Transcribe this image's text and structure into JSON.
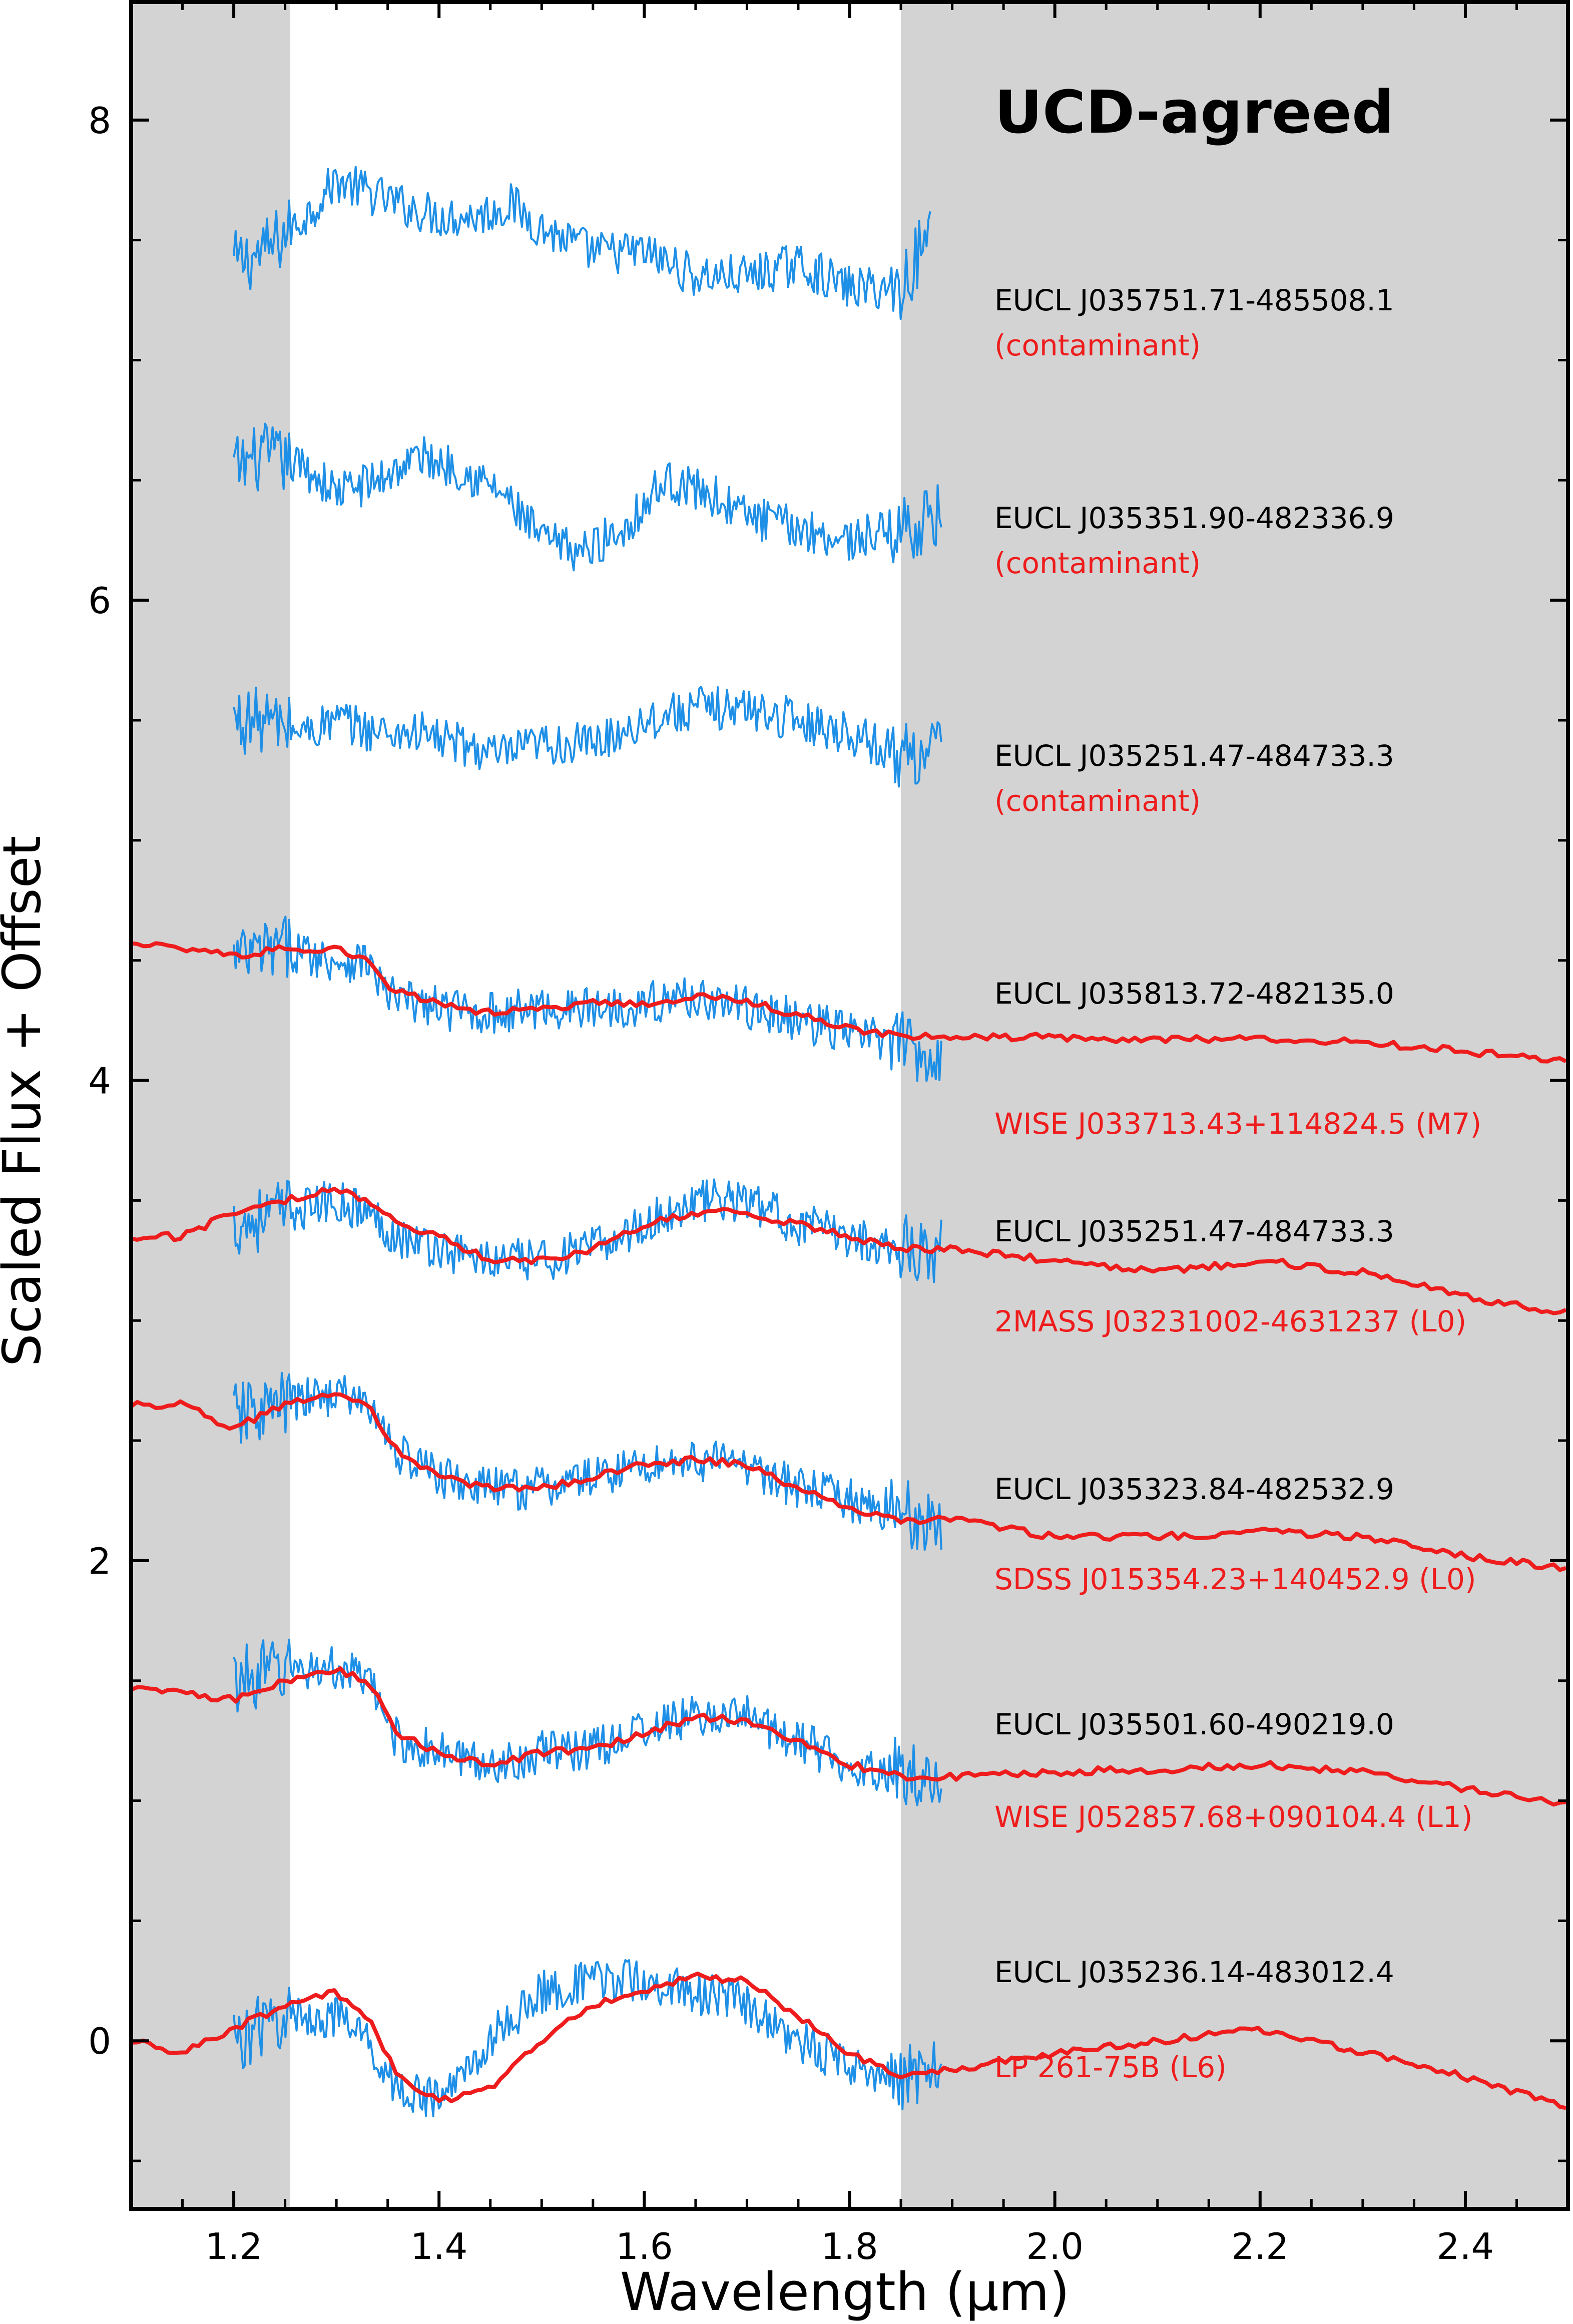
{
  "chart_data": {
    "type": "line",
    "title": "UCD-agreed",
    "xlabel": "Wavelength (μm)",
    "ylabel": "Scaled Flux + Offset",
    "xlim": [
      1.1,
      2.5
    ],
    "ylim": [
      -0.7,
      8.5
    ],
    "x_ticks": [
      1.2,
      1.4,
      1.6,
      1.8,
      2.0,
      2.2,
      2.4
    ],
    "x_tick_labels": [
      "1.2",
      "1.4",
      "1.6",
      "1.8",
      "2.0",
      "2.2",
      "2.4"
    ],
    "y_ticks": [
      0,
      2,
      4,
      6,
      8
    ],
    "y_tick_labels": [
      "0",
      "2",
      "4",
      "6",
      "8"
    ],
    "shaded_regions": [
      [
        1.1,
        1.255
      ],
      [
        1.85,
        2.5
      ]
    ],
    "colors": {
      "observed": "#1e8fe6",
      "observed_masked": "#000000",
      "template": "#ee1c1c",
      "shade": "#d3d3d3"
    },
    "grid": false,
    "spectra": [
      {
        "object": "EUCL J035751.71-485508.1",
        "match": "(contaminant)",
        "observed": [
          [
            1.2,
            7.4
          ],
          [
            1.23,
            7.45
          ],
          [
            1.27,
            7.6
          ],
          [
            1.3,
            7.75
          ],
          [
            1.33,
            7.7
          ],
          [
            1.36,
            7.65
          ],
          [
            1.4,
            7.6
          ],
          [
            1.44,
            7.6
          ],
          [
            1.47,
            7.65
          ],
          [
            1.5,
            7.55
          ],
          [
            1.55,
            7.45
          ],
          [
            1.6,
            7.45
          ],
          [
            1.65,
            7.35
          ],
          [
            1.7,
            7.35
          ],
          [
            1.75,
            7.4
          ],
          [
            1.8,
            7.3
          ],
          [
            1.85,
            7.3
          ],
          [
            1.88,
            7.55
          ]
        ]
      },
      {
        "object": "EUCL J035351.90-482336.9",
        "match": "(contaminant)",
        "observed": [
          [
            1.2,
            6.55
          ],
          [
            1.23,
            6.6
          ],
          [
            1.27,
            6.55
          ],
          [
            1.3,
            6.45
          ],
          [
            1.34,
            6.5
          ],
          [
            1.38,
            6.6
          ],
          [
            1.42,
            6.55
          ],
          [
            1.46,
            6.45
          ],
          [
            1.5,
            6.25
          ],
          [
            1.54,
            6.2
          ],
          [
            1.58,
            6.3
          ],
          [
            1.62,
            6.5
          ],
          [
            1.66,
            6.45
          ],
          [
            1.7,
            6.35
          ],
          [
            1.75,
            6.3
          ],
          [
            1.8,
            6.25
          ],
          [
            1.85,
            6.3
          ],
          [
            1.89,
            6.35
          ]
        ]
      },
      {
        "object": "EUCL J035251.47-484733.3",
        "match": "(contaminant)",
        "observed": [
          [
            1.2,
            5.5
          ],
          [
            1.23,
            5.5
          ],
          [
            1.27,
            5.45
          ],
          [
            1.3,
            5.5
          ],
          [
            1.34,
            5.45
          ],
          [
            1.38,
            5.45
          ],
          [
            1.42,
            5.4
          ],
          [
            1.46,
            5.35
          ],
          [
            1.5,
            5.4
          ],
          [
            1.55,
            5.4
          ],
          [
            1.6,
            5.5
          ],
          [
            1.65,
            5.55
          ],
          [
            1.7,
            5.55
          ],
          [
            1.75,
            5.5
          ],
          [
            1.8,
            5.45
          ],
          [
            1.85,
            5.35
          ],
          [
            1.89,
            5.4
          ]
        ]
      },
      {
        "object": "EUCL J035813.72-482135.0",
        "match": "WISE J033713.43+114824.5 (M7)",
        "observed": [
          [
            1.2,
            4.5
          ],
          [
            1.25,
            4.55
          ],
          [
            1.3,
            4.5
          ],
          [
            1.33,
            4.5
          ],
          [
            1.35,
            4.35
          ],
          [
            1.4,
            4.3
          ],
          [
            1.45,
            4.28
          ],
          [
            1.5,
            4.3
          ],
          [
            1.55,
            4.3
          ],
          [
            1.6,
            4.32
          ],
          [
            1.65,
            4.35
          ],
          [
            1.7,
            4.3
          ],
          [
            1.75,
            4.25
          ],
          [
            1.8,
            4.2
          ],
          [
            1.85,
            4.15
          ],
          [
            1.89,
            4.1
          ]
        ],
        "template": [
          [
            1.1,
            4.58
          ],
          [
            1.15,
            4.55
          ],
          [
            1.2,
            4.52
          ],
          [
            1.25,
            4.55
          ],
          [
            1.3,
            4.55
          ],
          [
            1.33,
            4.5
          ],
          [
            1.35,
            4.38
          ],
          [
            1.4,
            4.32
          ],
          [
            1.45,
            4.28
          ],
          [
            1.5,
            4.3
          ],
          [
            1.55,
            4.32
          ],
          [
            1.6,
            4.32
          ],
          [
            1.65,
            4.35
          ],
          [
            1.7,
            4.33
          ],
          [
            1.75,
            4.27
          ],
          [
            1.8,
            4.22
          ],
          [
            1.85,
            4.18
          ],
          [
            1.9,
            4.18
          ],
          [
            2.0,
            4.18
          ],
          [
            2.1,
            4.17
          ],
          [
            2.2,
            4.17
          ],
          [
            2.3,
            4.16
          ],
          [
            2.4,
            4.12
          ],
          [
            2.5,
            4.08
          ]
        ]
      },
      {
        "object": "EUCL J035251.47-484733.3",
        "match": "2MASS J03231002-4631237 (L0)",
        "observed": [
          [
            1.2,
            3.4
          ],
          [
            1.25,
            3.45
          ],
          [
            1.3,
            3.5
          ],
          [
            1.33,
            3.45
          ],
          [
            1.36,
            3.35
          ],
          [
            1.4,
            3.3
          ],
          [
            1.45,
            3.25
          ],
          [
            1.5,
            3.25
          ],
          [
            1.55,
            3.3
          ],
          [
            1.6,
            3.4
          ],
          [
            1.65,
            3.5
          ],
          [
            1.7,
            3.5
          ],
          [
            1.75,
            3.4
          ],
          [
            1.8,
            3.35
          ],
          [
            1.85,
            3.3
          ],
          [
            1.89,
            3.3
          ]
        ],
        "template": [
          [
            1.1,
            3.35
          ],
          [
            1.15,
            3.35
          ],
          [
            1.2,
            3.45
          ],
          [
            1.25,
            3.5
          ],
          [
            1.3,
            3.55
          ],
          [
            1.33,
            3.5
          ],
          [
            1.36,
            3.4
          ],
          [
            1.4,
            3.35
          ],
          [
            1.45,
            3.25
          ],
          [
            1.5,
            3.25
          ],
          [
            1.55,
            3.3
          ],
          [
            1.6,
            3.4
          ],
          [
            1.65,
            3.45
          ],
          [
            1.7,
            3.45
          ],
          [
            1.75,
            3.4
          ],
          [
            1.8,
            3.35
          ],
          [
            1.85,
            3.3
          ],
          [
            1.9,
            3.3
          ],
          [
            2.0,
            3.25
          ],
          [
            2.1,
            3.2
          ],
          [
            2.2,
            3.25
          ],
          [
            2.3,
            3.2
          ],
          [
            2.4,
            3.1
          ],
          [
            2.5,
            3.03
          ]
        ]
      },
      {
        "object": "EUCL J035323.84-482532.9",
        "match": "SDSS J015354.23+140452.9 (L0)",
        "observed": [
          [
            1.2,
            2.6
          ],
          [
            1.25,
            2.65
          ],
          [
            1.3,
            2.7
          ],
          [
            1.33,
            2.65
          ],
          [
            1.36,
            2.45
          ],
          [
            1.4,
            2.35
          ],
          [
            1.45,
            2.3
          ],
          [
            1.5,
            2.3
          ],
          [
            1.55,
            2.35
          ],
          [
            1.6,
            2.4
          ],
          [
            1.65,
            2.42
          ],
          [
            1.7,
            2.4
          ],
          [
            1.75,
            2.3
          ],
          [
            1.8,
            2.25
          ],
          [
            1.85,
            2.2
          ],
          [
            1.89,
            2.15
          ]
        ],
        "template": [
          [
            1.1,
            2.65
          ],
          [
            1.15,
            2.65
          ],
          [
            1.2,
            2.55
          ],
          [
            1.25,
            2.65
          ],
          [
            1.3,
            2.7
          ],
          [
            1.33,
            2.65
          ],
          [
            1.36,
            2.45
          ],
          [
            1.4,
            2.35
          ],
          [
            1.45,
            2.3
          ],
          [
            1.5,
            2.3
          ],
          [
            1.55,
            2.35
          ],
          [
            1.6,
            2.4
          ],
          [
            1.65,
            2.42
          ],
          [
            1.7,
            2.4
          ],
          [
            1.75,
            2.3
          ],
          [
            1.8,
            2.22
          ],
          [
            1.85,
            2.17
          ],
          [
            1.9,
            2.17
          ],
          [
            2.0,
            2.1
          ],
          [
            2.1,
            2.1
          ],
          [
            2.2,
            2.12
          ],
          [
            2.3,
            2.1
          ],
          [
            2.4,
            2.02
          ],
          [
            2.5,
            1.97
          ]
        ]
      },
      {
        "object": "EUCL J035501.60-490219.0",
        "match": "WISE J052857.68+090104.4 (L1)",
        "observed": [
          [
            1.2,
            1.5
          ],
          [
            1.25,
            1.55
          ],
          [
            1.3,
            1.55
          ],
          [
            1.33,
            1.5
          ],
          [
            1.36,
            1.25
          ],
          [
            1.4,
            1.2
          ],
          [
            1.45,
            1.15
          ],
          [
            1.5,
            1.2
          ],
          [
            1.55,
            1.22
          ],
          [
            1.6,
            1.3
          ],
          [
            1.65,
            1.35
          ],
          [
            1.7,
            1.35
          ],
          [
            1.75,
            1.25
          ],
          [
            1.8,
            1.15
          ],
          [
            1.85,
            1.12
          ],
          [
            1.89,
            1.1
          ]
        ],
        "template": [
          [
            1.1,
            1.47
          ],
          [
            1.15,
            1.45
          ],
          [
            1.2,
            1.42
          ],
          [
            1.25,
            1.5
          ],
          [
            1.3,
            1.55
          ],
          [
            1.33,
            1.5
          ],
          [
            1.36,
            1.28
          ],
          [
            1.4,
            1.2
          ],
          [
            1.45,
            1.15
          ],
          [
            1.5,
            1.2
          ],
          [
            1.55,
            1.22
          ],
          [
            1.6,
            1.28
          ],
          [
            1.65,
            1.35
          ],
          [
            1.7,
            1.33
          ],
          [
            1.75,
            1.25
          ],
          [
            1.8,
            1.15
          ],
          [
            1.85,
            1.1
          ],
          [
            1.9,
            1.1
          ],
          [
            2.0,
            1.12
          ],
          [
            2.1,
            1.13
          ],
          [
            2.2,
            1.15
          ],
          [
            2.3,
            1.12
          ],
          [
            2.4,
            1.05
          ],
          [
            2.5,
            0.98
          ]
        ]
      },
      {
        "object": "EUCL J035236.14-483012.4",
        "match": "LP 261-75B (L6)",
        "observed": [
          [
            1.2,
            0.0
          ],
          [
            1.25,
            0.1
          ],
          [
            1.3,
            0.1
          ],
          [
            1.33,
            0.0
          ],
          [
            1.36,
            -0.2
          ],
          [
            1.4,
            -0.25
          ],
          [
            1.43,
            -0.1
          ],
          [
            1.46,
            0.05
          ],
          [
            1.5,
            0.2
          ],
          [
            1.55,
            0.25
          ],
          [
            1.6,
            0.25
          ],
          [
            1.65,
            0.2
          ],
          [
            1.7,
            0.15
          ],
          [
            1.75,
            0.0
          ],
          [
            1.8,
            -0.1
          ],
          [
            1.85,
            -0.15
          ],
          [
            1.89,
            -0.1
          ]
        ],
        "template": [
          [
            1.1,
            0.0
          ],
          [
            1.15,
            -0.05
          ],
          [
            1.2,
            0.05
          ],
          [
            1.25,
            0.15
          ],
          [
            1.3,
            0.2
          ],
          [
            1.33,
            0.1
          ],
          [
            1.36,
            -0.15
          ],
          [
            1.4,
            -0.25
          ],
          [
            1.45,
            -0.2
          ],
          [
            1.5,
            0.0
          ],
          [
            1.55,
            0.15
          ],
          [
            1.6,
            0.2
          ],
          [
            1.65,
            0.27
          ],
          [
            1.7,
            0.25
          ],
          [
            1.75,
            0.1
          ],
          [
            1.8,
            -0.05
          ],
          [
            1.85,
            -0.15
          ],
          [
            1.9,
            -0.12
          ],
          [
            2.0,
            -0.05
          ],
          [
            2.1,
            0.0
          ],
          [
            2.2,
            0.05
          ],
          [
            2.3,
            -0.05
          ],
          [
            2.4,
            -0.15
          ],
          [
            2.5,
            -0.28
          ]
        ]
      }
    ]
  }
}
